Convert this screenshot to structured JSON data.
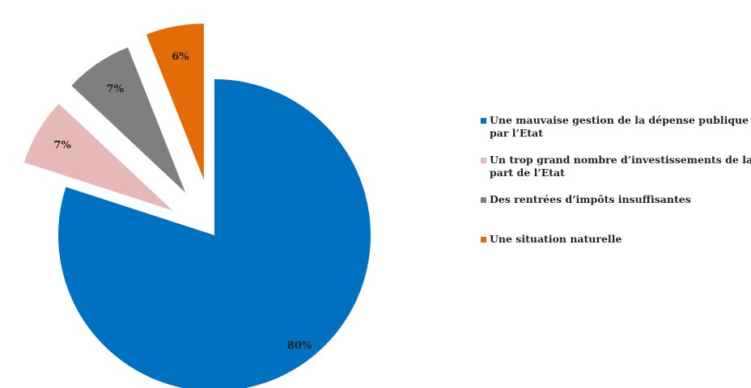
{
  "chart_data": {
    "type": "pie",
    "series": [
      {
        "name": "Une mauvaise gestion de la dépense publique par l’Etat",
        "legend_lines": [
          "Une mauvaise gestion de la dépense publique",
          "par l’Etat"
        ],
        "value": 80,
        "label": "80%",
        "color": "#0070C0"
      },
      {
        "name": "Un trop grand nombre d’investissements de la part de l’Etat",
        "legend_lines": [
          "Un trop grand nombre d’investissements de la",
          "part de l’Etat"
        ],
        "value": 7,
        "label": "7%",
        "color": "#E6B9B8"
      },
      {
        "name": "Des rentrées d’impôts insuffisantes",
        "legend_lines": [
          "Des rentrées d’impôts insuffisantes"
        ],
        "value": 7,
        "label": "7%",
        "color": "#7F7F7F"
      },
      {
        "name": "Une situation naturelle",
        "legend_lines": [
          "Une situation naturelle"
        ],
        "value": 6,
        "label": "6%",
        "color": "#E36C09"
      }
    ],
    "exploded": true,
    "legend_position": "right"
  }
}
